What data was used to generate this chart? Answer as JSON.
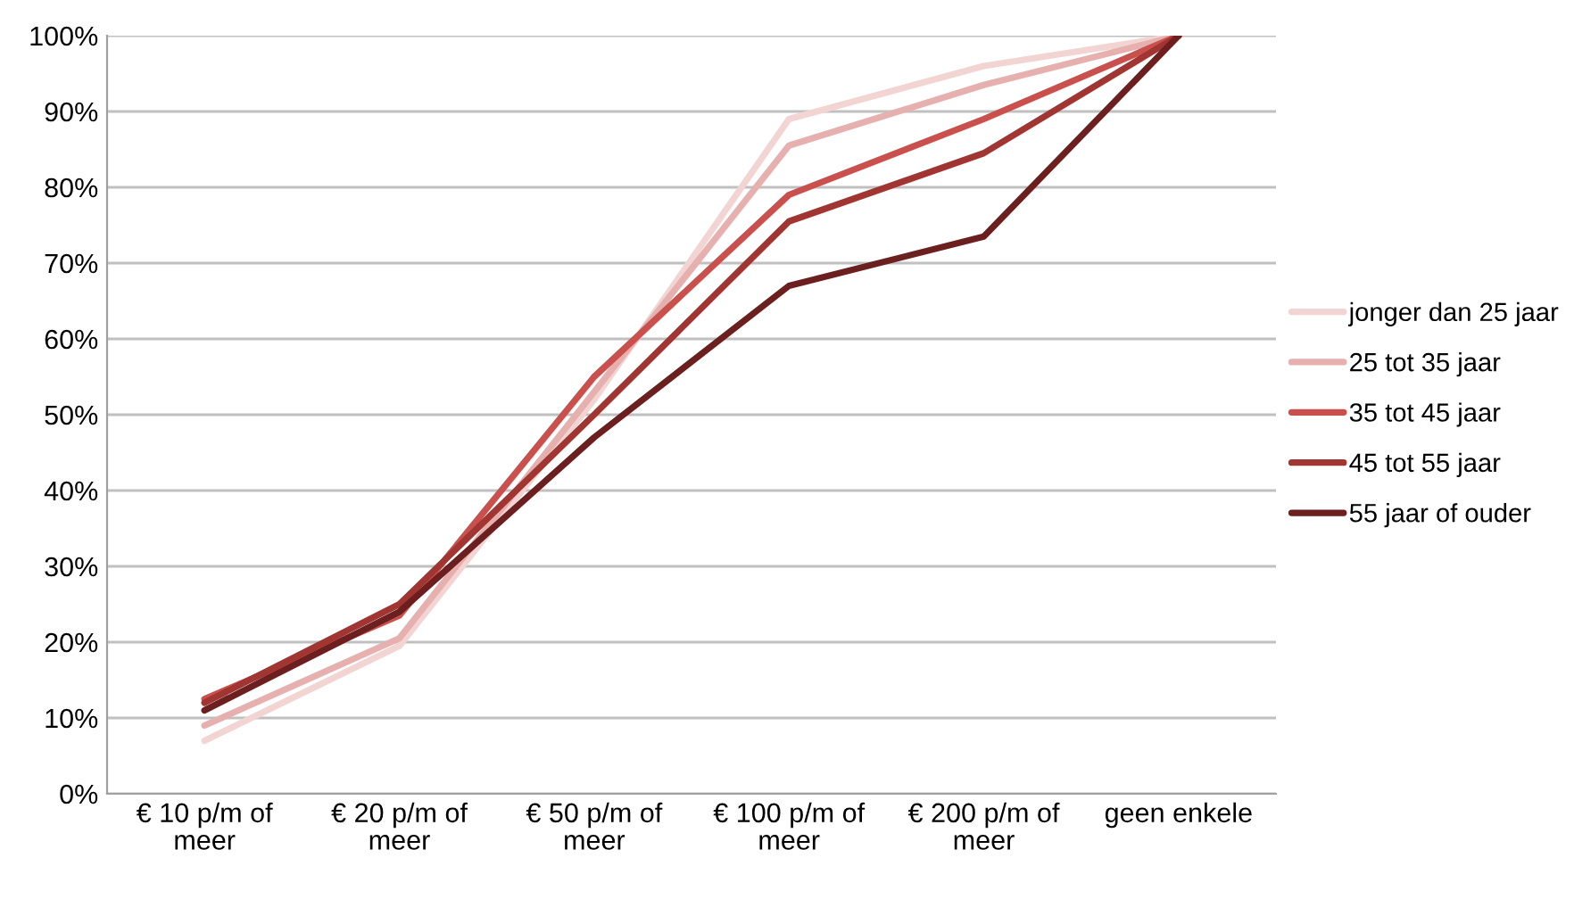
{
  "chart_data": {
    "type": "line",
    "categories": [
      "€ 10 p/m of meer",
      "€ 20 p/m of meer",
      "€ 50 p/m of meer",
      "€ 100 p/m of meer",
      "€ 200 p/m of meer",
      "geen enkele"
    ],
    "series": [
      {
        "name": "jonger dan 25 jaar",
        "color": "#f2d4d2",
        "values": [
          7,
          19.5,
          52,
          89,
          96,
          100
        ]
      },
      {
        "name": "25 tot 35 jaar",
        "color": "#e6b0ae",
        "values": [
          9,
          20.5,
          53,
          85.5,
          93.5,
          100
        ]
      },
      {
        "name": "35 tot 45 jaar",
        "color": "#c9504d",
        "values": [
          12.5,
          23.5,
          55,
          79,
          89,
          100
        ]
      },
      {
        "name": "45 tot 55 jaar",
        "color": "#a03532",
        "values": [
          12,
          25,
          50,
          75.5,
          84.5,
          100
        ]
      },
      {
        "name": "55 jaar of ouder",
        "color": "#6b1f1e",
        "values": [
          11,
          24,
          47,
          67,
          73.5,
          100
        ]
      }
    ],
    "ylim": [
      0,
      100
    ],
    "yticks": [
      {
        "value": 0,
        "label": "0%"
      },
      {
        "value": 10,
        "label": "10%"
      },
      {
        "value": 20,
        "label": "20%"
      },
      {
        "value": 30,
        "label": "30%"
      },
      {
        "value": 40,
        "label": "40%"
      },
      {
        "value": 50,
        "label": "50%"
      },
      {
        "value": 60,
        "label": "60%"
      },
      {
        "value": 70,
        "label": "70%"
      },
      {
        "value": 80,
        "label": "80%"
      },
      {
        "value": 90,
        "label": "90%"
      },
      {
        "value": 100,
        "label": "100%"
      }
    ],
    "grid": "y",
    "legend": "right",
    "marker": "none",
    "line_style": "solid"
  }
}
